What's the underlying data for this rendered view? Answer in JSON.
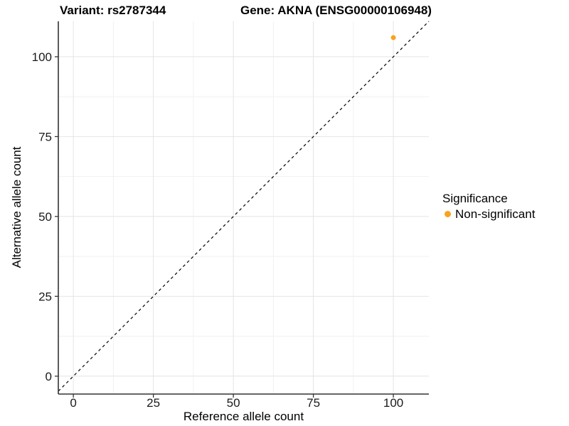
{
  "figure": {
    "background": "#FFFFFF",
    "title_variant": "Variant: rs2787344",
    "title_gene": "Gene: AKNA (ENSG00000106948)"
  },
  "chart_data": {
    "type": "scatter",
    "title_variant": "Variant: rs2787344",
    "title_gene": "Gene: AKNA (ENSG00000106948)",
    "xlabel": "Reference allele count",
    "ylabel": "Alternative allele count",
    "xlim": [
      -4.7,
      111.1
    ],
    "ylim": [
      -5.6,
      111.1
    ],
    "x_ticks": [
      0,
      25,
      50,
      75,
      100
    ],
    "y_ticks": [
      0,
      25,
      50,
      75,
      100
    ],
    "grid": {
      "show_major": true,
      "show_minor": true,
      "major_color": "#E4E4E4",
      "minor_color": "#F1F1F1"
    },
    "axis_color": "#333333",
    "tick_label_color": "#1a1a1a",
    "identity_line": {
      "slope": 1,
      "intercept": 0,
      "style": "dashed",
      "color": "#000000"
    },
    "series": [
      {
        "name": "Non-significant",
        "color": "#FAA21E",
        "point_radius": 3.5,
        "points": [
          {
            "x": 100,
            "y": 106
          }
        ]
      }
    ],
    "legend": {
      "title": "Significance",
      "position": "right",
      "entries": [
        {
          "label": "Non-significant",
          "color": "#FAA21E",
          "marker": "circle"
        }
      ]
    }
  }
}
